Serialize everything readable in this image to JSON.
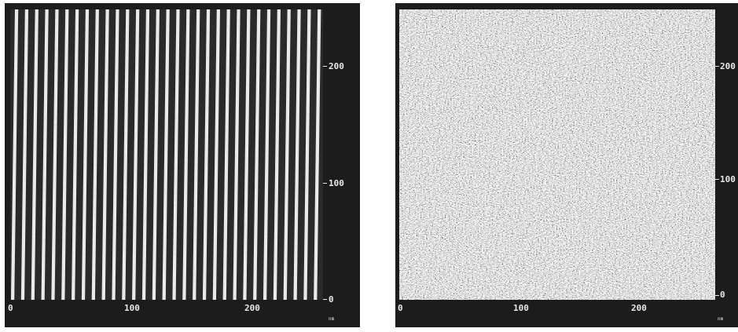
{
  "left_panel": {
    "image": "afm-scan-periodic-stripes",
    "y_ticks": [
      "200",
      "100",
      "0"
    ],
    "x_ticks": [
      "0",
      "100",
      "200"
    ],
    "unit": "nm"
  },
  "right_panel": {
    "image": "afm-scan-random-texture",
    "y_ticks": [
      "200",
      "100",
      "0"
    ],
    "x_ticks": [
      "0",
      "100",
      "200"
    ],
    "unit": "nm"
  },
  "colors": {
    "frame": "#1c1c1c",
    "labels": "#e8e8e8"
  }
}
